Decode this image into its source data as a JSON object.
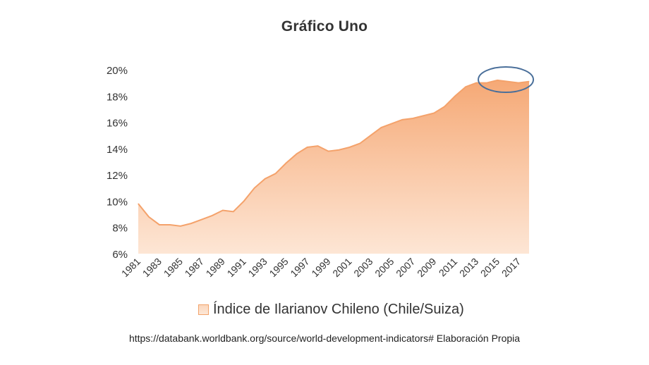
{
  "chart_data": {
    "type": "area",
    "title": "Gráfico Uno",
    "xlabel": "",
    "ylabel": "",
    "ylim": [
      6,
      20
    ],
    "y_tick_labels": [
      "6%",
      "8%",
      "10%",
      "12%",
      "14%",
      "16%",
      "18%",
      "20%"
    ],
    "y_ticks": [
      6,
      8,
      10,
      12,
      14,
      16,
      18,
      20
    ],
    "x_tick_labels": [
      "1981",
      "1983",
      "1985",
      "1987",
      "1989",
      "1991",
      "1993",
      "1995",
      "1997",
      "1999",
      "2001",
      "2003",
      "2005",
      "2007",
      "2009",
      "2011",
      "2013",
      "2015",
      "2017"
    ],
    "x": [
      1981,
      1982,
      1983,
      1984,
      1985,
      1986,
      1987,
      1988,
      1989,
      1990,
      1991,
      1992,
      1993,
      1994,
      1995,
      1996,
      1997,
      1998,
      1999,
      2000,
      2001,
      2002,
      2003,
      2004,
      2005,
      2006,
      2007,
      2008,
      2009,
      2010,
      2011,
      2012,
      2013,
      2014,
      2015,
      2016,
      2017,
      2018
    ],
    "series": [
      {
        "name": "Índice de Ilarianov Chileno (Chile/Suiza)",
        "values": [
          9.8,
          8.8,
          8.2,
          8.2,
          8.1,
          8.3,
          8.6,
          8.9,
          9.3,
          9.2,
          10.0,
          11.0,
          11.7,
          12.1,
          12.9,
          13.6,
          14.1,
          14.2,
          13.8,
          13.9,
          14.1,
          14.4,
          15.0,
          15.6,
          15.9,
          16.2,
          16.3,
          16.5,
          16.7,
          17.2,
          18.0,
          18.7,
          19.0,
          19.0,
          19.2,
          19.1,
          19.0,
          19.1
        ]
      }
    ],
    "grid": false,
    "legend_position": "bottom",
    "annotation": "highlight ellipse over 2014–2018",
    "colors": {
      "fill_top": "#f5a46e",
      "fill_bottom": "#fde3d0",
      "line": "#f4a26b",
      "ellipse": "#4a6f9a"
    }
  },
  "source_note": "https://databank.worldbank.org/source/world-development-indicators# Elaboración Propia"
}
